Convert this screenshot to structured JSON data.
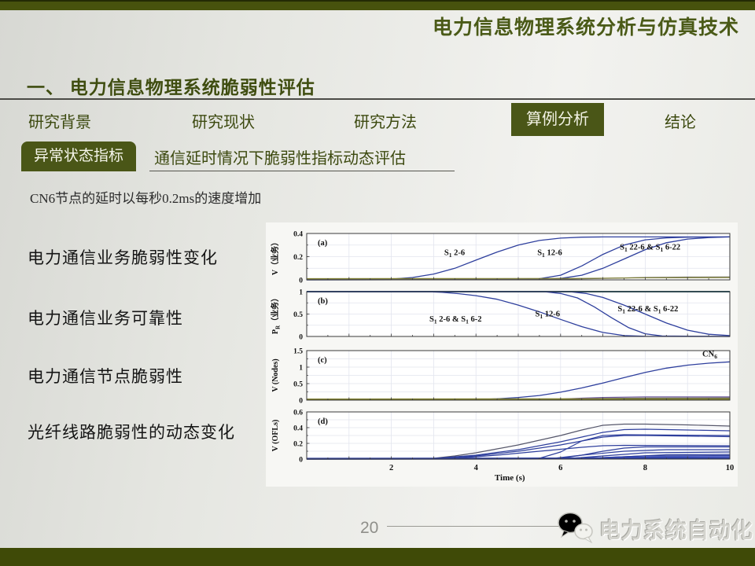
{
  "colors": {
    "olive_bar": "#47520d",
    "olive_badge": "#4a5617",
    "heading_text": "#3f4d10",
    "title_text": "#4a5a17",
    "line_blue": "#2e3f9d",
    "watermark_gray": "#d4d4ce"
  },
  "header": {
    "title": "电力信息物理系统分析与仿真技术"
  },
  "section": {
    "heading": "一、 电力信息物理系统脆弱性评估"
  },
  "nav": {
    "tabs": [
      {
        "label": "研究背景",
        "active": false
      },
      {
        "label": "研究现状",
        "active": false
      },
      {
        "label": "研究方法",
        "active": false
      },
      {
        "label": "算例分析",
        "active": true
      },
      {
        "label": "结论",
        "active": false
      }
    ]
  },
  "subheader": {
    "badge": "异常状态指标",
    "text": "通信延时情况下脆弱性指标动态评估"
  },
  "note": "CN6节点的延时以每秒0.2ms的速度增加",
  "row_labels": [
    "电力通信业务脆弱性变化",
    "电力通信业务可靠性",
    "电力通信节点脆弱性",
    "光纤线路脆弱性的动态变化"
  ],
  "footer": {
    "page_number": "20",
    "watermark": "电力系统自动化"
  },
  "chart_data": [
    {
      "type": "line",
      "panel": "(a)",
      "ylabel": "V（业务）",
      "xlim": [
        0,
        10
      ],
      "ylim": [
        0,
        0.4
      ],
      "yticks": [
        0,
        0.2,
        0.4
      ],
      "grid_step": 0.1,
      "series": [
        {
          "name": "S1 2-6",
          "color": "#2e3f9d",
          "width": 1.3,
          "x": [
            0,
            1.5,
            2,
            2.5,
            3,
            3.5,
            4,
            4.5,
            5,
            5.5,
            6,
            6.5,
            7,
            8,
            9,
            10
          ],
          "y": [
            0.002,
            0.002,
            0.006,
            0.02,
            0.05,
            0.1,
            0.17,
            0.24,
            0.3,
            0.34,
            0.36,
            0.368,
            0.37,
            0.37,
            0.37,
            0.37
          ]
        },
        {
          "name": "S1 12-6",
          "color": "#2e3f9d",
          "width": 1.3,
          "x": [
            0,
            5,
            5.5,
            6,
            6.5,
            7,
            7.5,
            8,
            8.5,
            9,
            10
          ],
          "y": [
            0,
            0.002,
            0.01,
            0.04,
            0.12,
            0.22,
            0.3,
            0.345,
            0.362,
            0.368,
            0.37
          ]
        },
        {
          "name": "S1 22-6 & S1 6-22",
          "color": "#2e3f9d",
          "width": 1.3,
          "x": [
            0,
            5.5,
            6,
            6.5,
            7,
            7.5,
            8,
            8.5,
            9,
            9.5,
            10
          ],
          "y": [
            0,
            0.002,
            0.012,
            0.04,
            0.1,
            0.18,
            0.26,
            0.32,
            0.352,
            0.365,
            0.37
          ]
        },
        {
          "name": "other services gray",
          "color": "#6a6a6a",
          "width": 1.2,
          "x": [
            0,
            6,
            7,
            8,
            9,
            10
          ],
          "y": [
            0.004,
            0.006,
            0.012,
            0.02,
            0.024,
            0.025
          ]
        },
        {
          "name": "other services olive",
          "color": "#7d7d2f",
          "width": 1.2,
          "x": [
            0,
            6.5,
            8,
            10
          ],
          "y": [
            0.01,
            0.012,
            0.018,
            0.02
          ]
        }
      ],
      "annotations": [
        {
          "text": "S_{1} 2-6",
          "x": 3.25,
          "y": 0.215
        },
        {
          "text": "S_{1} 12-6",
          "x": 5.45,
          "y": 0.215
        },
        {
          "text": "S_{1} 22-6 & S_{1} 6-22",
          "x": 7.4,
          "y": 0.26
        }
      ]
    },
    {
      "type": "line",
      "panel": "(b)",
      "ylabel": "P_{R}（业务）",
      "xlim": [
        0,
        10
      ],
      "ylim": [
        0,
        1
      ],
      "yticks": [
        0,
        0.5,
        1
      ],
      "grid_step": 0.25,
      "series": [
        {
          "name": "unaffected services",
          "color": "#2e5f6f",
          "width": 2,
          "x": [
            0,
            10
          ],
          "y": [
            1,
            1
          ]
        },
        {
          "name": "S1 2-6 & S1 6-2",
          "color": "#2e3f9d",
          "width": 1.3,
          "x": [
            0,
            2.8,
            3.2,
            3.6,
            4,
            4.5,
            5,
            5.5,
            6,
            6.5,
            7,
            7.5,
            8,
            10
          ],
          "y": [
            1,
            1,
            0.985,
            0.955,
            0.91,
            0.83,
            0.7,
            0.55,
            0.38,
            0.22,
            0.09,
            0.02,
            0.004,
            0
          ]
        },
        {
          "name": "S1 12-6",
          "color": "#2e3f9d",
          "width": 1.3,
          "x": [
            0,
            5.6,
            6,
            6.4,
            6.8,
            7.2,
            7.6,
            8,
            8.4,
            10
          ],
          "y": [
            1,
            1,
            0.96,
            0.86,
            0.66,
            0.42,
            0.2,
            0.06,
            0.01,
            0
          ]
        },
        {
          "name": "S1 22-6 & S1 6-22",
          "color": "#2e3f9d",
          "width": 1.3,
          "x": [
            0,
            6.2,
            6.6,
            7,
            7.5,
            8,
            8.5,
            9,
            9.5,
            10
          ],
          "y": [
            1,
            1,
            0.96,
            0.87,
            0.7,
            0.5,
            0.3,
            0.14,
            0.05,
            0.02
          ]
        }
      ],
      "annotations": [
        {
          "text": "S_{1} 2-6 & S_{1} 6-2",
          "x": 2.9,
          "y": 0.33
        },
        {
          "text": "S_{1} 12-6",
          "x": 5.4,
          "y": 0.45
        },
        {
          "text": "S_{1} 22-6 & S_{1} 6-22",
          "x": 7.35,
          "y": 0.56
        }
      ]
    },
    {
      "type": "line",
      "panel": "(c)",
      "ylabel": "V (Nodes)",
      "xlim": [
        0,
        10
      ],
      "ylim": [
        0,
        1.5
      ],
      "yticks": [
        0,
        0.5,
        1,
        1.5
      ],
      "grid_step": 0.25,
      "series": [
        {
          "name": "CN6",
          "color": "#2e3f9d",
          "width": 1.3,
          "x": [
            0,
            4,
            4.5,
            5,
            5.5,
            6,
            6.5,
            7,
            7.5,
            8,
            8.5,
            9,
            9.5,
            10
          ],
          "y": [
            0.005,
            0.015,
            0.04,
            0.08,
            0.14,
            0.24,
            0.37,
            0.52,
            0.68,
            0.84,
            0.97,
            1.06,
            1.12,
            1.16
          ]
        },
        {
          "name": "other nodes purple",
          "color": "#6f5a9e",
          "width": 1.2,
          "x": [
            0,
            5.5,
            6,
            6.5,
            7,
            8,
            10
          ],
          "y": [
            0.005,
            0.01,
            0.03,
            0.06,
            0.08,
            0.1,
            0.1
          ]
        },
        {
          "name": "other nodes gray",
          "color": "#6a6a6a",
          "width": 1.2,
          "x": [
            0,
            6,
            7,
            8,
            10
          ],
          "y": [
            0.002,
            0.02,
            0.05,
            0.065,
            0.07
          ]
        },
        {
          "name": "other nodes olive",
          "color": "#7d7d2f",
          "width": 2.5,
          "x": [
            0,
            10
          ],
          "y": [
            0.02,
            0.03
          ]
        }
      ],
      "annotations": [
        {
          "text": "CN_{6}",
          "x": 9.35,
          "y": 1.32
        }
      ]
    },
    {
      "type": "line",
      "panel": "(d)",
      "ylabel": "V (OFLs)",
      "xlim": [
        0,
        10
      ],
      "ylim": [
        0,
        0.6
      ],
      "yticks": [
        0,
        0.2,
        0.4,
        0.6
      ],
      "grid_step": 0.1,
      "xticks": [
        2,
        4,
        6,
        8,
        10
      ],
      "xlabel": "Time (s)",
      "series": [
        {
          "name": "OFL top",
          "color": "#55566a",
          "width": 1.2,
          "x": [
            0,
            3,
            3.5,
            4,
            4.5,
            5,
            5.5,
            6,
            6.5,
            7,
            7.5,
            8,
            9,
            10
          ],
          "y": [
            0.002,
            0.01,
            0.04,
            0.08,
            0.13,
            0.18,
            0.24,
            0.3,
            0.37,
            0.43,
            0.445,
            0.445,
            0.435,
            0.42
          ]
        },
        {
          "name": "OFL 2",
          "color": "#2e3f9d",
          "width": 1.2,
          "x": [
            0,
            3,
            4,
            5,
            6,
            6.5,
            7,
            7.5,
            8,
            9,
            10
          ],
          "y": [
            0.002,
            0.008,
            0.05,
            0.12,
            0.22,
            0.28,
            0.34,
            0.375,
            0.38,
            0.37,
            0.36
          ]
        },
        {
          "name": "OFL 3",
          "color": "#2e3f9d",
          "width": 1.2,
          "x": [
            0,
            3.2,
            4,
            5,
            6,
            6.5,
            7,
            7.5,
            8,
            10
          ],
          "y": [
            0.002,
            0.008,
            0.04,
            0.1,
            0.18,
            0.23,
            0.28,
            0.3,
            0.3,
            0.285
          ]
        },
        {
          "name": "OFL 4",
          "color": "#2e3f9d",
          "width": 1.2,
          "x": [
            0,
            5.5,
            6,
            6.5,
            7,
            7.5,
            10
          ],
          "y": [
            0.002,
            0.01,
            0.09,
            0.23,
            0.3,
            0.31,
            0.3
          ]
        },
        {
          "name": "OFL 5",
          "color": "#2e3f9d",
          "width": 1.2,
          "x": [
            0,
            3.5,
            4.5,
            5.5,
            6.5,
            7,
            7.5,
            10
          ],
          "y": [
            0.002,
            0.01,
            0.05,
            0.1,
            0.15,
            0.17,
            0.175,
            0.17
          ]
        },
        {
          "name": "OFL 6",
          "color": "#2e3f9d",
          "width": 1.2,
          "x": [
            0,
            6,
            6.5,
            7,
            7.5,
            8,
            10
          ],
          "y": [
            0.002,
            0.01,
            0.05,
            0.1,
            0.14,
            0.155,
            0.155
          ]
        },
        {
          "name": "OFL 7",
          "color": "#2e3f9d",
          "width": 1.2,
          "x": [
            0,
            5.8,
            6.5,
            7.5,
            8.5,
            10
          ],
          "y": [
            0.002,
            0.008,
            0.05,
            0.1,
            0.12,
            0.12
          ]
        },
        {
          "name": "OFL 8",
          "color": "#2e3f9d",
          "width": 1.2,
          "x": [
            0,
            6.2,
            7,
            8,
            10
          ],
          "y": [
            0.002,
            0.008,
            0.04,
            0.08,
            0.09
          ]
        },
        {
          "name": "OFL 9",
          "color": "#2e3f9d",
          "width": 1.2,
          "x": [
            0,
            6.5,
            7.5,
            8.5,
            10
          ],
          "y": [
            0.002,
            0.006,
            0.03,
            0.055,
            0.06
          ]
        },
        {
          "name": "OFL 10",
          "color": "#2e3f9d",
          "width": 1.2,
          "x": [
            0,
            6,
            7,
            8,
            10
          ],
          "y": [
            0.002,
            0.005,
            0.02,
            0.04,
            0.045
          ]
        },
        {
          "name": "OFL band",
          "color": "#3a4cc0",
          "width": 1.5,
          "x": [
            0,
            6,
            8,
            10
          ],
          "y": [
            0.002,
            0.01,
            0.025,
            0.03
          ]
        },
        {
          "name": "OFL baseline",
          "color": "#2e3f9d",
          "width": 2.5,
          "x": [
            0,
            10
          ],
          "y": [
            0.004,
            0.01
          ]
        }
      ],
      "annotations": []
    }
  ]
}
